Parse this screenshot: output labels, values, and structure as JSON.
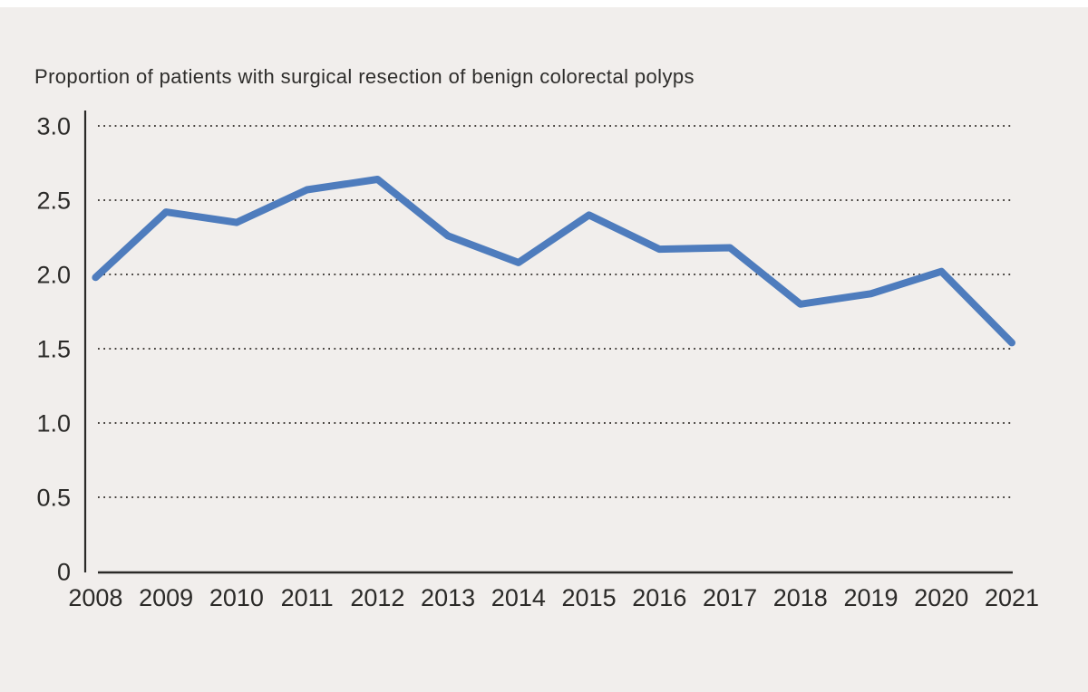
{
  "page": {
    "background_color": "#f1eeec",
    "top_strip_color": "#ffffff"
  },
  "chart_data": {
    "type": "line",
    "title": "Proportion of patients with surgical resection of benign colorectal polyps",
    "categories": [
      "2008",
      "2009",
      "2010",
      "2011",
      "2012",
      "2013",
      "2014",
      "2015",
      "2016",
      "2017",
      "2018",
      "2019",
      "2020",
      "2021"
    ],
    "series": [
      {
        "name": "Proportion of patients with surgical resection of benign colorectal polyps",
        "values": [
          1.98,
          2.42,
          2.35,
          2.57,
          2.64,
          2.26,
          2.08,
          2.4,
          2.17,
          2.18,
          1.8,
          1.87,
          2.02,
          1.54
        ]
      }
    ],
    "xlabel": "",
    "ylabel": "",
    "ylim": [
      0,
      3.0
    ],
    "y_ticks": [
      {
        "label": "3.0",
        "value": 3.0
      },
      {
        "label": "2.5",
        "value": 2.5
      },
      {
        "label": "2.0",
        "value": 2.0
      },
      {
        "label": "1.5",
        "value": 1.5
      },
      {
        "label": "1.0",
        "value": 1.0
      },
      {
        "label": "0.5",
        "value": 0.5
      },
      {
        "label": "0",
        "value": 0.0
      }
    ],
    "grid": "horizontal-dotted",
    "legend_position": "none",
    "colors": {
      "line": "#4e7cbd",
      "axis": "#2b2a28",
      "gridline": "#44403c",
      "text": "#2b2a28"
    }
  }
}
